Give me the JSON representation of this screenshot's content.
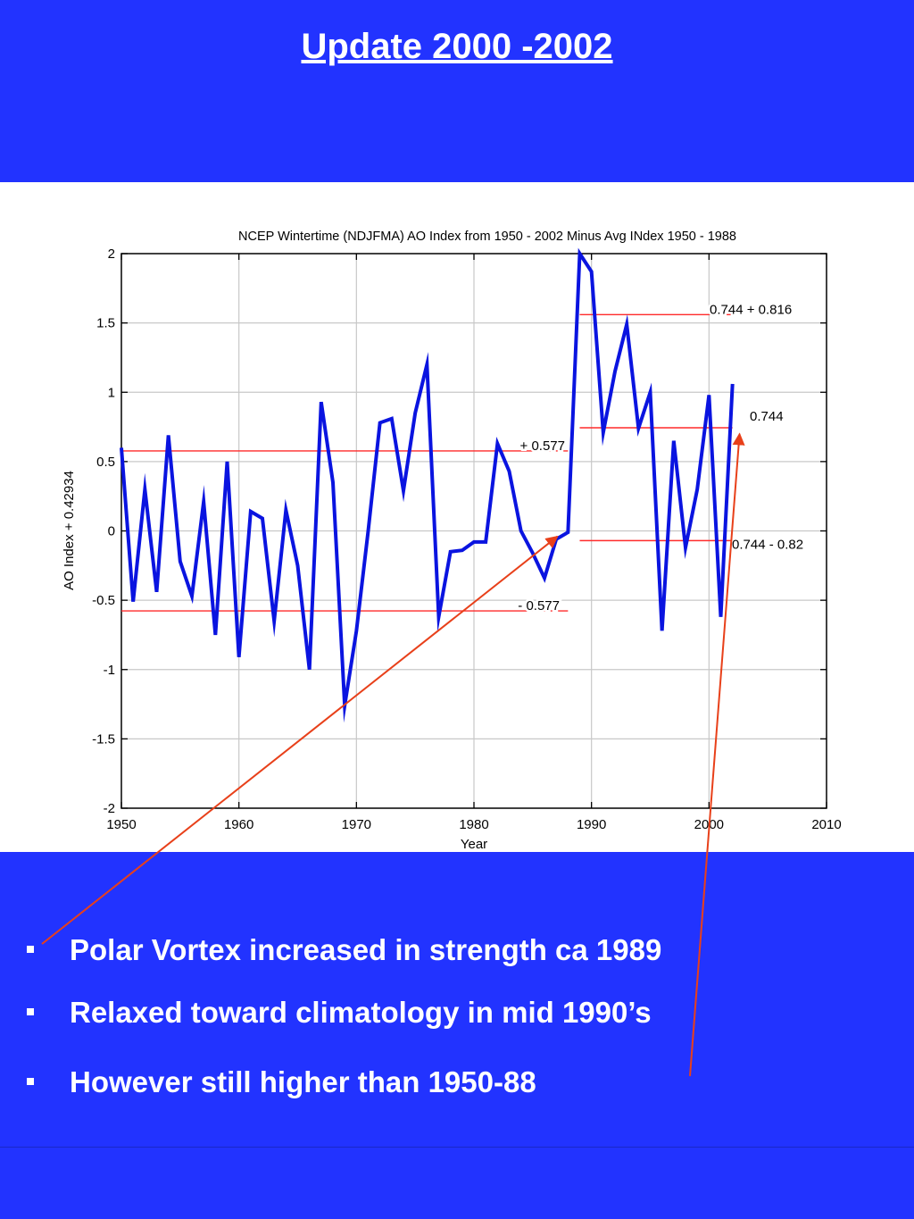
{
  "slide": {
    "title": "Update 2000 -2002",
    "bullets": [
      "Polar Vortex increased in strength ca 1989",
      "Relaxed toward climatology in mid 1990’s",
      "However still higher than 1950-88"
    ],
    "colors": {
      "background": "#2233ff",
      "text": "#ffffff"
    }
  },
  "chart_data": {
    "type": "line",
    "title": "NCEP Wintertime (NDJFMA) AO Index from 1950 - 2002 Minus Avg INdex 1950 - 1988",
    "xlabel": "Year",
    "ylabel": "AO Index + 0.42934",
    "xlim": [
      1950,
      2010
    ],
    "ylim": [
      -2,
      2
    ],
    "xticks": [
      1950,
      1960,
      1970,
      1980,
      1990,
      2000,
      2010
    ],
    "yticks": [
      -2,
      -1.5,
      -1,
      -0.5,
      0,
      0.5,
      1,
      1.5,
      2
    ],
    "grid": true,
    "series": [
      {
        "color": "#0a14e0",
        "x": [
          1950,
          1951,
          1952,
          1953,
          1954,
          1955,
          1956,
          1957,
          1958,
          1959,
          1960,
          1961,
          1962,
          1963,
          1964,
          1965,
          1966,
          1967,
          1968,
          1969,
          1970,
          1971,
          1972,
          1973,
          1974,
          1975,
          1976,
          1977,
          1978,
          1979,
          1980,
          1981,
          1982,
          1983,
          1984,
          1985,
          1986,
          1987,
          1988,
          1989,
          1990,
          1991,
          1992,
          1993,
          1994,
          1995,
          1996,
          1997,
          1998,
          1999,
          2000,
          2001,
          2002
        ],
        "y": [
          0.6,
          -0.51,
          0.3,
          -0.44,
          0.69,
          -0.22,
          -0.47,
          0.21,
          -0.75,
          0.5,
          -0.91,
          0.14,
          0.09,
          -0.65,
          0.15,
          -0.25,
          -1.0,
          0.93,
          0.35,
          -1.26,
          -0.72,
          0.0,
          0.78,
          0.81,
          0.29,
          0.85,
          1.2,
          -0.62,
          -0.15,
          -0.14,
          -0.08,
          -0.08,
          0.63,
          0.43,
          0.0,
          -0.16,
          -0.34,
          -0.06,
          -0.01,
          2.0,
          1.87,
          0.71,
          1.15,
          1.49,
          0.74,
          1.0,
          -0.72,
          0.65,
          -0.12,
          0.3,
          0.98,
          -0.62,
          1.06
        ]
      }
    ],
    "reference_lines": [
      {
        "label": "+ 0.577",
        "y": 0.577,
        "x_from": 1950,
        "x_to": 1988,
        "color": "#ff2a2a"
      },
      {
        "label": "- 0.577",
        "y": -0.577,
        "x_from": 1950,
        "x_to": 1988,
        "color": "#ff2a2a"
      },
      {
        "label": "0.744 + 0.816",
        "y": 1.56,
        "x_from": 1989,
        "x_to": 2002,
        "color": "#ff2a2a"
      },
      {
        "label": "0.744",
        "y": 0.744,
        "x_from": 1989,
        "x_to": 2002,
        "color": "#ff2a2a"
      },
      {
        "label": "0.744 - 0.82",
        "y": -0.07,
        "x_from": 1989,
        "x_to": 2002,
        "color": "#ff2a2a"
      }
    ],
    "arrow_color": "#e8401a"
  }
}
